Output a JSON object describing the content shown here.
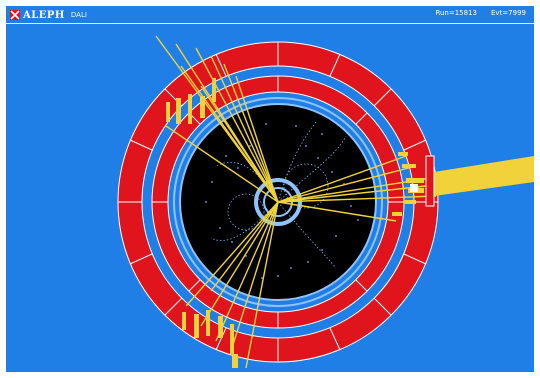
{
  "header": {
    "title": "ALEPH",
    "subtitle": "DALI",
    "run_info": "Run=15813",
    "event_info": "Evt=7999"
  },
  "colors": {
    "background": "#1f7fe6",
    "calorimeter": "#e0141c",
    "tracker": "#000000",
    "tracks": "#f2d23a",
    "hits": "#6fb4ff",
    "outline": "#8ec3ff"
  }
}
